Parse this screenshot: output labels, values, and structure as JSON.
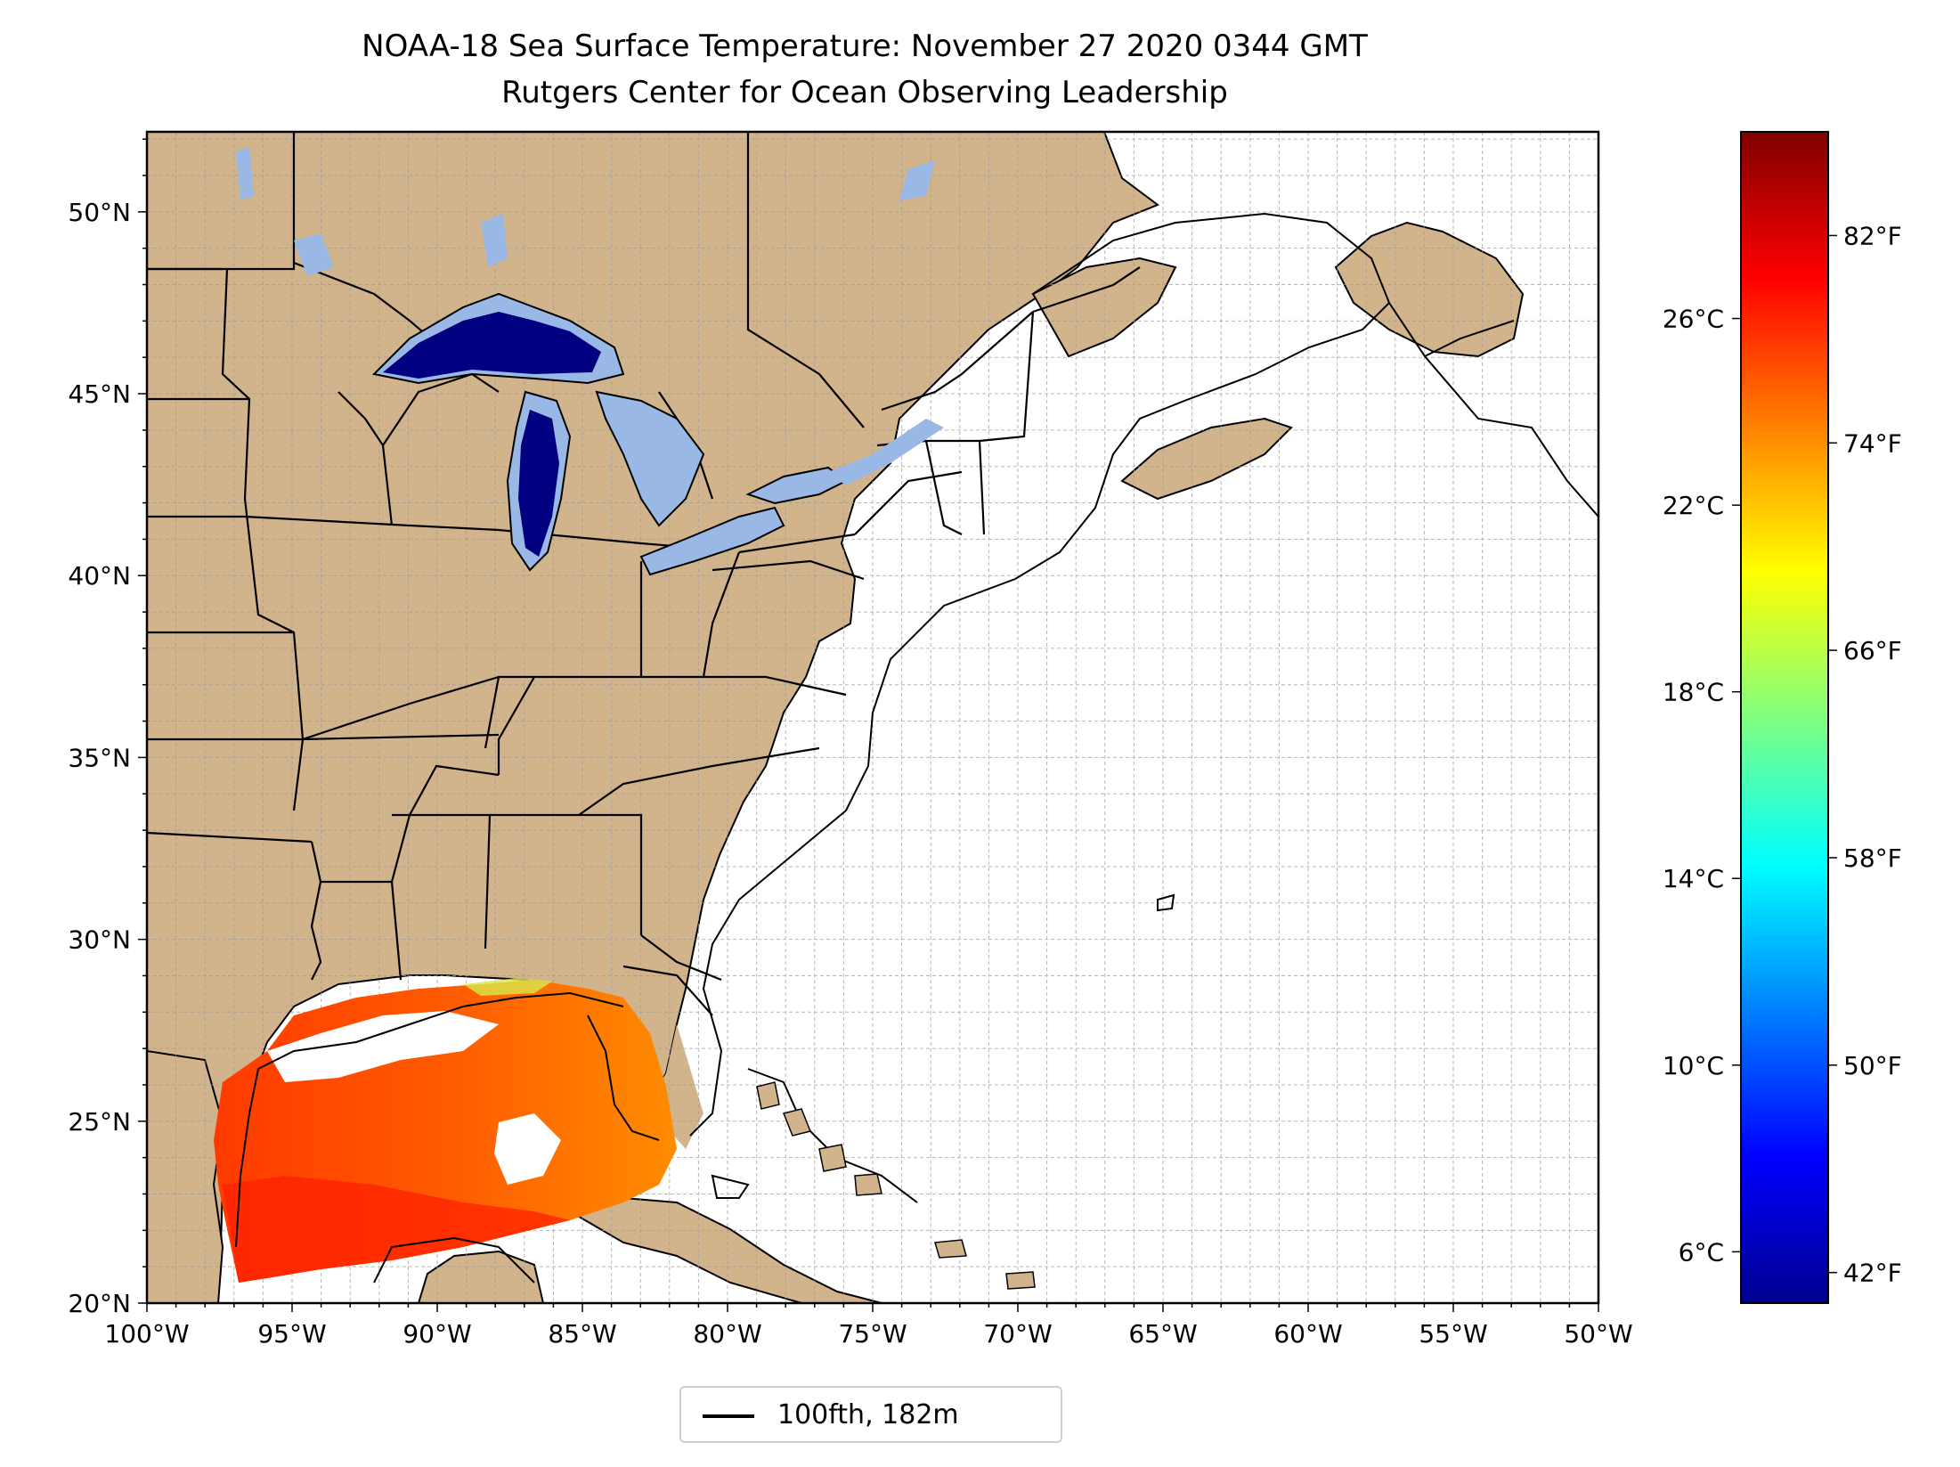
{
  "title": "NOAA-18 Sea Surface Temperature: November 27 2020 0344 GMT",
  "subtitle": "Rutgers Center for Ocean Observing Leadership",
  "map": {
    "lon_range": [
      -100,
      -50
    ],
    "lat_range": [
      20,
      52.2
    ],
    "lon_ticks": [
      "100°W",
      "95°W",
      "90°W",
      "85°W",
      "80°W",
      "75°W",
      "70°W",
      "65°W",
      "60°W",
      "55°W",
      "50°W"
    ],
    "lat_ticks": [
      "20°N",
      "25°N",
      "30°N",
      "35°N",
      "40°N",
      "45°N",
      "50°N"
    ],
    "gridlines": true,
    "land_color": "#d2b48c",
    "water_color": "#ffffff",
    "lake_color": "#9ab8e6",
    "cold_sst_color": "#000080"
  },
  "colorbar": {
    "celsius_ticks": [
      "6°C",
      "10°C",
      "14°C",
      "18°C",
      "22°C",
      "26°C"
    ],
    "fahrenheit_ticks": [
      "42°F",
      "50°F",
      "58°F",
      "66°F",
      "74°F",
      "82°F"
    ],
    "colormap": "jet",
    "colors": [
      "#00008f",
      "#0000ff",
      "#0080ff",
      "#00ffff",
      "#80ff80",
      "#ffff00",
      "#ff8000",
      "#ff0000",
      "#800000"
    ]
  },
  "legend": {
    "label": "100fth, 182m",
    "line_color": "#000000"
  }
}
